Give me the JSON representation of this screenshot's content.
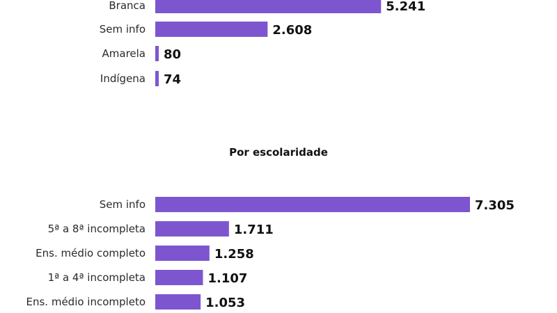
{
  "colors": {
    "bar": "#7d56cf",
    "text": "#2a2a2a",
    "value": "#111111",
    "background": "#ffffff"
  },
  "chart_data": [
    {
      "type": "bar",
      "orientation": "horizontal",
      "title": "",
      "categories": [
        "Branca",
        "Sem info",
        "Amarela",
        "Indígena"
      ],
      "values": [
        5241,
        2608,
        80,
        74
      ],
      "value_labels": [
        "5.241",
        "2.608",
        "80",
        "74"
      ],
      "xlim": [
        0,
        7305
      ],
      "grid": false,
      "legend": "none"
    },
    {
      "type": "bar",
      "orientation": "horizontal",
      "title": "Por escolaridade",
      "categories": [
        "Sem info",
        "5ª a 8ª incompleta",
        "Ens. médio completo",
        "1ª a 4ª incompleta",
        "Ens. médio incompleto"
      ],
      "values": [
        7305,
        1711,
        1258,
        1107,
        1053
      ],
      "value_labels": [
        "7.305",
        "1.711",
        "1.258",
        "1.107",
        "1.053"
      ],
      "xlim": [
        0,
        7305
      ],
      "grid": false,
      "legend": "none"
    }
  ]
}
